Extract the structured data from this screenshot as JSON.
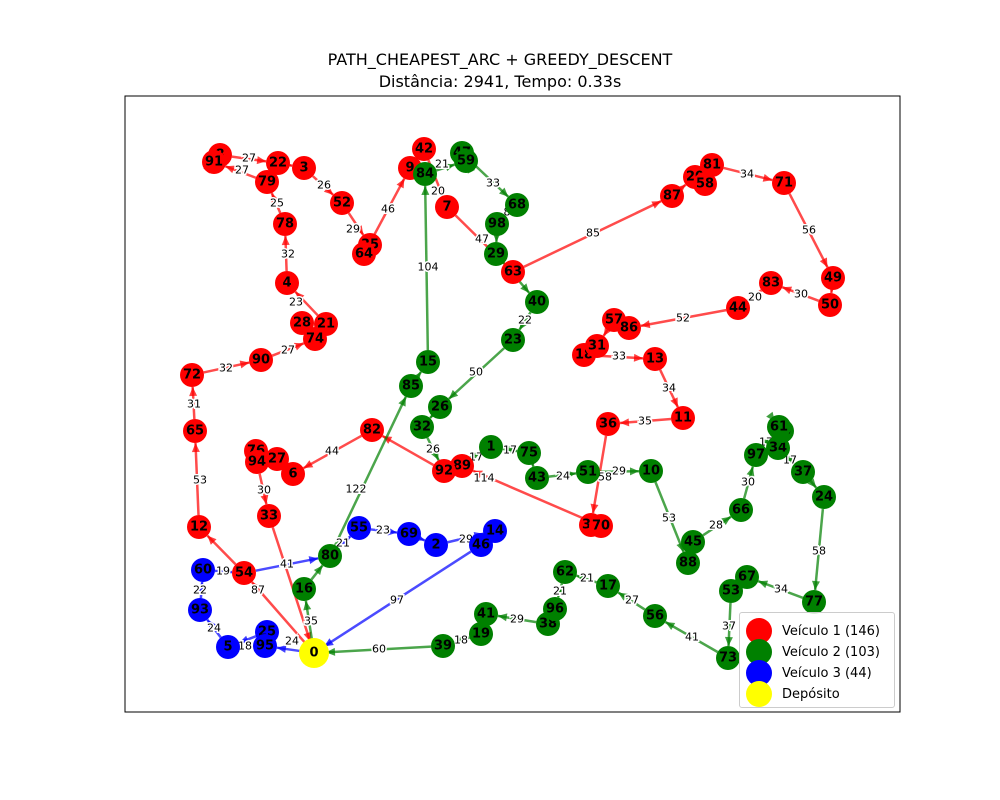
{
  "title": "PATH_CHEAPEST_ARC + GREEDY_DESCENT",
  "subtitle": "Distância: 2941, Tempo: 0.33s",
  "colors": {
    "v1": "#ff0000",
    "v2": "#008000",
    "v3": "#0000ff",
    "depot": "#ffff00"
  },
  "legend": [
    {
      "label": "Veículo 1 (146)",
      "color": "#ff0000"
    },
    {
      "label": "Veículo 2 (103)",
      "color": "#008000"
    },
    {
      "label": "Veículo 3 (44)",
      "color": "#0000ff"
    },
    {
      "label": "Depósito",
      "color": "#ffff00"
    }
  ],
  "depot": {
    "id": "0"
  },
  "routes": {
    "v1": [
      "0",
      "54",
      "12",
      "65",
      "72",
      "90",
      "74",
      "28",
      "21",
      "4",
      "78",
      "79",
      "91",
      "8",
      "22",
      "3",
      "52",
      "35",
      "64",
      "9",
      "42",
      "7",
      "63",
      "87",
      "20",
      "58",
      "81",
      "71",
      "49",
      "50",
      "83",
      "44",
      "86",
      "57",
      "31",
      "18",
      "13",
      "11",
      "36",
      "30",
      "70",
      "89",
      "92",
      "82",
      "6",
      "27",
      "76",
      "94",
      "33",
      "0"
    ],
    "v2": [
      "0",
      "16",
      "80",
      "85",
      "15",
      "84",
      "59",
      "47",
      "68",
      "98",
      "29",
      "40",
      "23",
      "26",
      "32",
      "92",
      "1",
      "75",
      "43",
      "51",
      "10",
      "88",
      "45",
      "66",
      "97",
      "61",
      "48",
      "34",
      "37",
      "24",
      "77",
      "67",
      "53",
      "73",
      "56",
      "17",
      "62",
      "96",
      "38",
      "41",
      "19",
      "39",
      "0"
    ],
    "v3": [
      "0",
      "95",
      "25",
      "5",
      "93",
      "60",
      "54",
      "80",
      "55",
      "69",
      "2",
      "14",
      "46",
      "0"
    ]
  },
  "edge_labels": [
    {
      "text": "27"
    },
    {
      "text": "27"
    },
    {
      "text": "26"
    },
    {
      "text": "25"
    },
    {
      "text": "29"
    },
    {
      "text": "46"
    },
    {
      "text": "20"
    },
    {
      "text": "21"
    },
    {
      "text": "33"
    },
    {
      "text": "32"
    },
    {
      "text": "104"
    },
    {
      "text": "47"
    },
    {
      "text": "8"
    },
    {
      "text": "85"
    },
    {
      "text": "34"
    },
    {
      "text": "56"
    },
    {
      "text": "30"
    },
    {
      "text": "20"
    },
    {
      "text": "52"
    },
    {
      "text": "23"
    },
    {
      "text": "27"
    },
    {
      "text": "32"
    },
    {
      "text": "33"
    },
    {
      "text": "34"
    },
    {
      "text": "35"
    },
    {
      "text": "50"
    },
    {
      "text": "22"
    },
    {
      "text": "31"
    },
    {
      "text": "53"
    },
    {
      "text": "44"
    },
    {
      "text": "26"
    },
    {
      "text": "17"
    },
    {
      "text": "17"
    },
    {
      "text": "114"
    },
    {
      "text": "24"
    },
    {
      "text": "29"
    },
    {
      "text": "58"
    },
    {
      "text": "53"
    },
    {
      "text": "28"
    },
    {
      "text": "30"
    },
    {
      "text": "17"
    },
    {
      "text": "17"
    },
    {
      "text": "58"
    },
    {
      "text": "34"
    },
    {
      "text": "37"
    },
    {
      "text": "41"
    },
    {
      "text": "27"
    },
    {
      "text": "21"
    },
    {
      "text": "21"
    },
    {
      "text": "29"
    },
    {
      "text": "18"
    },
    {
      "text": "60"
    },
    {
      "text": "35"
    },
    {
      "text": "122"
    },
    {
      "text": "21"
    },
    {
      "text": "23"
    },
    {
      "text": "29"
    },
    {
      "text": "97"
    },
    {
      "text": "41"
    },
    {
      "text": "19"
    },
    {
      "text": "22"
    },
    {
      "text": "24"
    },
    {
      "text": "18"
    },
    {
      "text": "24"
    },
    {
      "text": "87"
    },
    {
      "text": "30"
    }
  ]
}
